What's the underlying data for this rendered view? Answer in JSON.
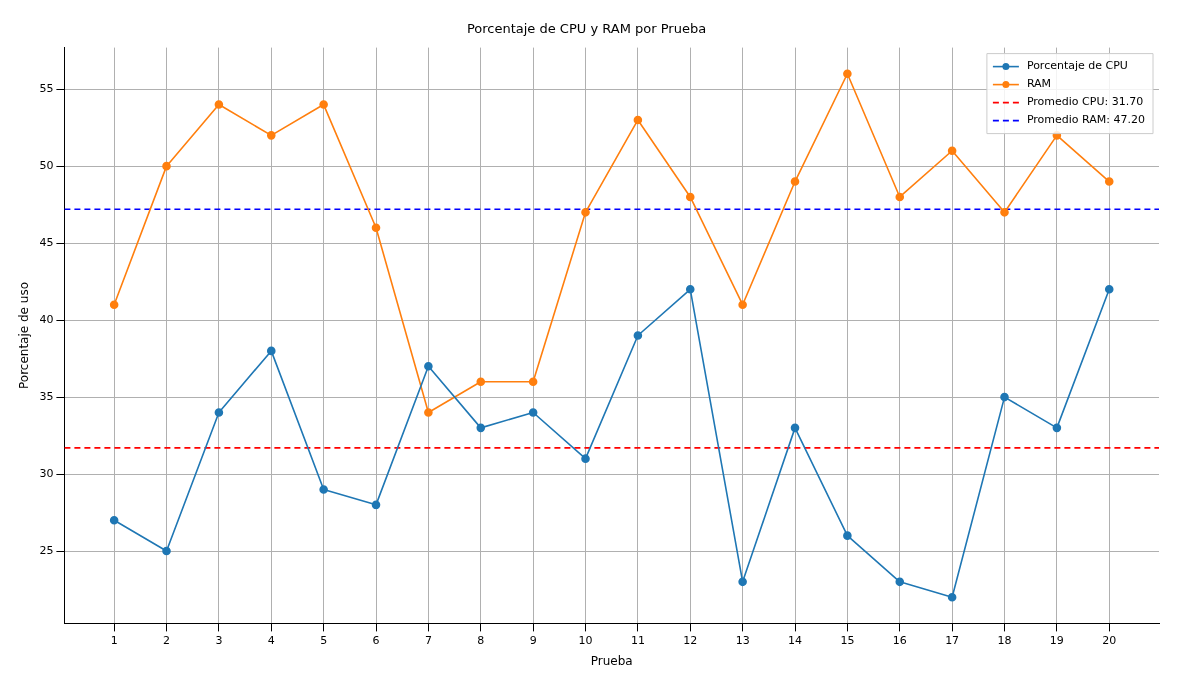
{
  "chart_data": {
    "type": "line",
    "title": "Porcentaje de CPU y RAM por Prueba",
    "xlabel": "Prueba",
    "ylabel": "Porcentaje de uso",
    "x": [
      1,
      2,
      3,
      4,
      5,
      6,
      7,
      8,
      9,
      10,
      11,
      12,
      13,
      14,
      15,
      16,
      17,
      18,
      19,
      20
    ],
    "series": [
      {
        "name": "Porcentaje de CPU",
        "color": "#1f77b4",
        "values": [
          27,
          25,
          34,
          38,
          29,
          28,
          37,
          33,
          34,
          31,
          39,
          42,
          23,
          33,
          26,
          23,
          22,
          35,
          33,
          42
        ]
      },
      {
        "name": "RAM",
        "color": "#ff7f0e",
        "values": [
          41,
          50,
          54,
          52,
          54,
          46,
          34,
          36,
          36,
          47,
          53,
          48,
          41,
          49,
          56,
          48,
          51,
          47,
          52,
          49
        ]
      }
    ],
    "ref_lines": [
      {
        "axis": "y",
        "value": 31.7,
        "label": "Promedio CPU: 31.70",
        "color": "#ff0000",
        "line_style": "dashed"
      },
      {
        "axis": "y",
        "value": 47.2,
        "label": "Promedio RAM: 47.20",
        "color": "#0000ff",
        "line_style": "dashed"
      }
    ],
    "xlim": [
      0.05,
      20.95
    ],
    "xticks": [
      1,
      2,
      3,
      4,
      5,
      6,
      7,
      8,
      9,
      10,
      11,
      12,
      13,
      14,
      15,
      16,
      17,
      18,
      19,
      20
    ],
    "ylim": [
      20.3,
      57.7
    ],
    "yticks": [
      25,
      30,
      35,
      40,
      45,
      50,
      55
    ],
    "grid": true,
    "legend": "top right",
    "marker": "circle",
    "line_style": "solid"
  }
}
